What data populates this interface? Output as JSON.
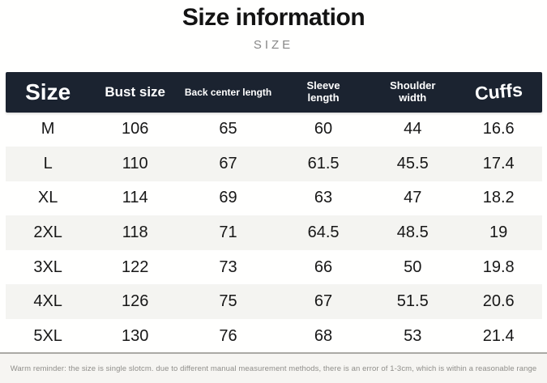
{
  "header": {
    "title": "Size information",
    "subtitle": "SIZE"
  },
  "columns": {
    "size": "Size",
    "bust": "Bust size",
    "back": "Back center length",
    "sleeve_line1": "Sleeve",
    "sleeve_line2": "length",
    "shoulder_line1": "Shoulder",
    "shoulder_line2": "width",
    "cuffs": "Cuffs"
  },
  "chart_data": {
    "type": "table",
    "title": "Size information",
    "subtitle": "SIZE",
    "columns": [
      "Size",
      "Bust size",
      "Back center length",
      "Sleeve length",
      "Shoulder width",
      "Cuffs"
    ],
    "rows": [
      [
        "M",
        "106",
        "65",
        "60",
        "44",
        "16.6"
      ],
      [
        "L",
        "110",
        "67",
        "61.5",
        "45.5",
        "17.4"
      ],
      [
        "XL",
        "114",
        "69",
        "63",
        "47",
        "18.2"
      ],
      [
        "2XL",
        "118",
        "71",
        "64.5",
        "48.5",
        "19"
      ],
      [
        "3XL",
        "122",
        "73",
        "66",
        "50",
        "19.8"
      ],
      [
        "4XL",
        "126",
        "75",
        "67",
        "51.5",
        "20.6"
      ],
      [
        "5XL",
        "130",
        "76",
        "68",
        "53",
        "21.4"
      ]
    ],
    "footnote": "Warm reminder: the size is single slotcm. due to different manual measurement methods, there is an error of 1-3cm, which is within a reasonable range"
  },
  "footer": {
    "reminder": "Warm reminder: the size is single slotcm. due to different manual measurement methods, there is an error of 1-3cm, which is within a reasonable range"
  },
  "colors": {
    "header_bg": "#1b2330",
    "header_text": "#ffffff",
    "alt_row_bg": "#f4f4f1",
    "footer_bg": "#f6f5f2",
    "subtitle_text": "#878787"
  }
}
